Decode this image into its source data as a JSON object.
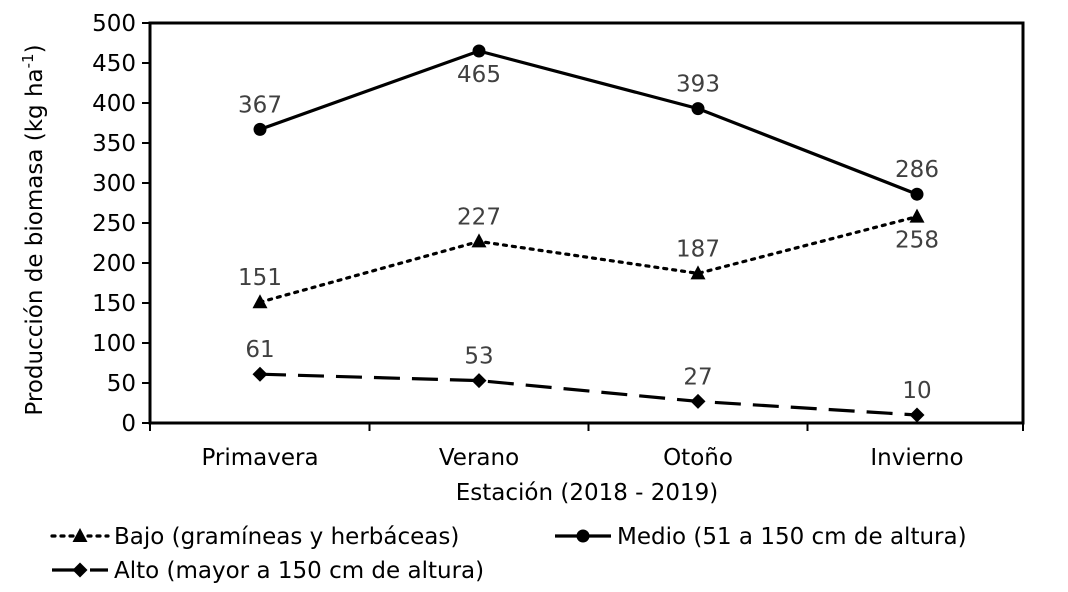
{
  "chart_data": {
    "type": "line",
    "title": "",
    "xlabel": "Estación (2018 - 2019)",
    "ylabel_main": "Producción de biomasa (kg ha",
    "ylabel_sup": "-1",
    "ylabel_end": ")",
    "ylim": [
      0,
      500
    ],
    "yticks": [
      0,
      50,
      100,
      150,
      200,
      250,
      300,
      350,
      400,
      450,
      500
    ],
    "categories": [
      "Primavera",
      "Verano",
      "Otoño",
      "Invierno"
    ],
    "grid": false,
    "legend_position": "bottom",
    "series": [
      {
        "name": "Bajo (gramíneas y herbáceas)",
        "values": [
          151,
          227,
          187,
          258
        ],
        "line_style": "dotted",
        "marker": "triangle",
        "color": "#000000",
        "label_placement": [
          "above",
          "above",
          "above",
          "below"
        ]
      },
      {
        "name": "Medio (51 a 150 cm de altura)",
        "values": [
          367,
          465,
          393,
          286
        ],
        "line_style": "solid",
        "marker": "circle",
        "color": "#000000",
        "label_placement": [
          "above",
          "below",
          "above",
          "above"
        ]
      },
      {
        "name": "Alto (mayor a 150 cm de altura)",
        "values": [
          61,
          53,
          27,
          10
        ],
        "line_style": "dashed",
        "marker": "diamond",
        "color": "#000000",
        "label_placement": [
          "above",
          "above",
          "above",
          "above"
        ]
      }
    ],
    "data_label_color": "#404040"
  }
}
